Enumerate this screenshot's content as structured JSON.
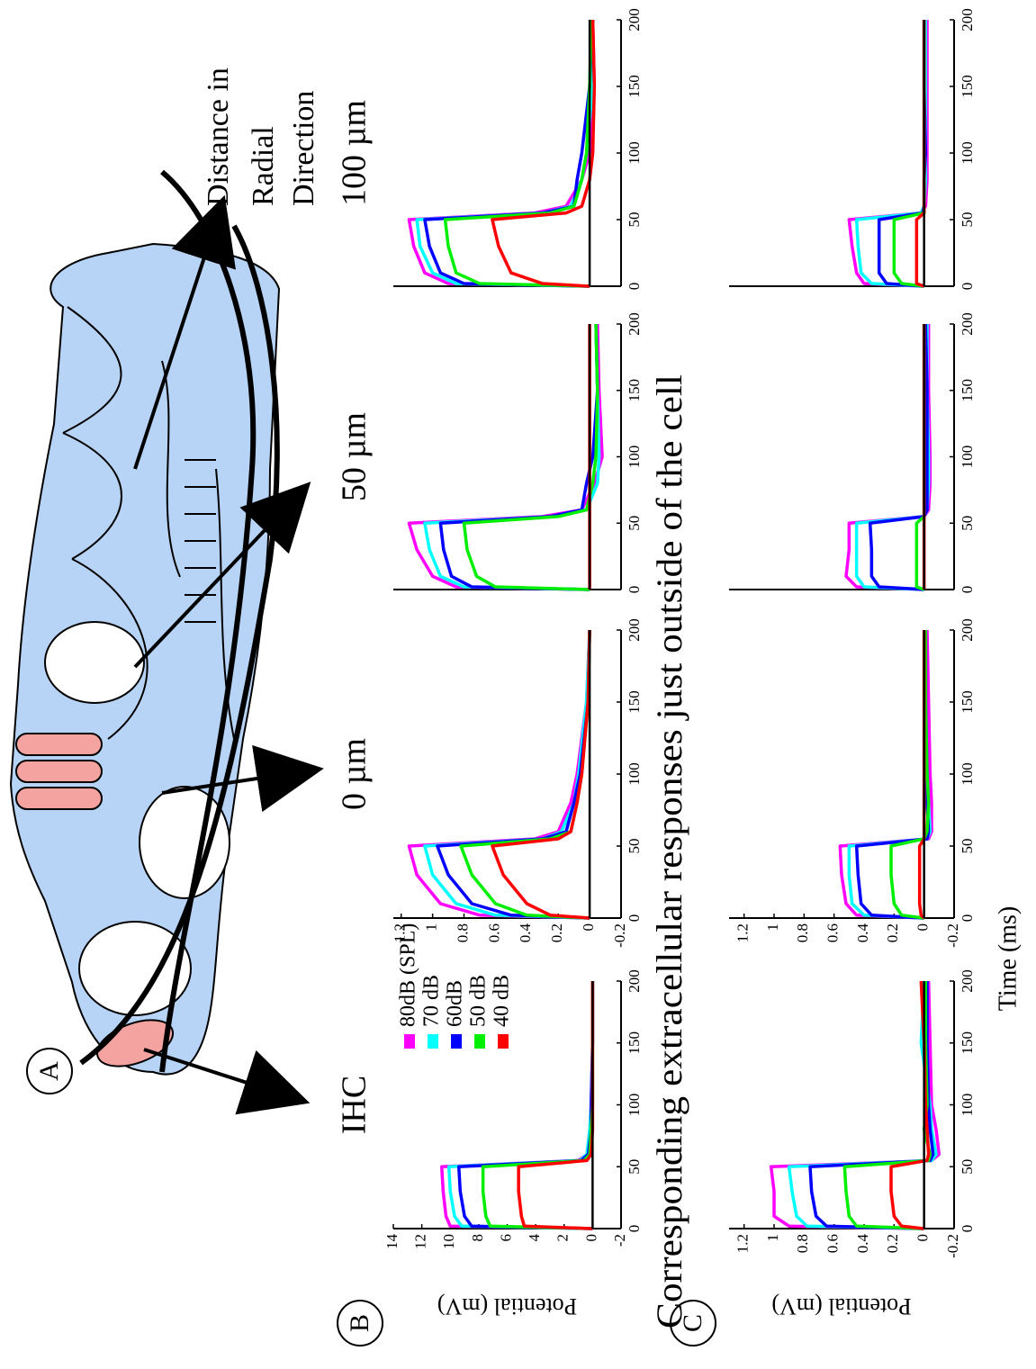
{
  "figure": {
    "panel_labels": [
      "A",
      "B",
      "C"
    ],
    "distance_label": [
      "Distance in",
      "Radial",
      "Direction"
    ],
    "row_c_title": "Corresponding extracellular responses just outside of the cell"
  },
  "chart_data": [
    {
      "type": "line",
      "title": "IHC",
      "ylabel": "Potential (mV)",
      "legend": "upper right",
      "x": [
        0,
        2,
        10,
        30,
        50,
        55,
        60,
        80,
        100,
        150,
        200
      ],
      "xlim": [
        0,
        200
      ],
      "xticks": [
        0,
        50,
        100,
        150,
        200
      ],
      "ylim": [
        -2,
        14
      ],
      "yticks": [
        -2,
        0,
        2,
        4,
        6,
        8,
        10,
        12,
        14
      ],
      "series": [
        {
          "name": "80dB (SPL)",
          "color": "#ff00ff",
          "values": [
            0,
            10.0,
            10.3,
            10.5,
            10.6,
            1.0,
            0.4,
            0.2,
            0.1,
            0,
            0
          ]
        },
        {
          "name": "70 dB",
          "color": "#00ffff",
          "values": [
            0,
            9.2,
            9.7,
            10.0,
            10.1,
            0.9,
            0.4,
            0.2,
            0.1,
            0,
            0
          ]
        },
        {
          "name": "60dB",
          "color": "#0000ff",
          "values": [
            0,
            8.5,
            9.0,
            9.3,
            9.4,
            0.8,
            0.3,
            0.1,
            0.1,
            0,
            0
          ]
        },
        {
          "name": "50 dB",
          "color": "#00ee00",
          "values": [
            0,
            7.2,
            7.5,
            7.7,
            7.7,
            0.6,
            0.2,
            0.1,
            0,
            0,
            0
          ]
        },
        {
          "name": "40 dB",
          "color": "#ff0000",
          "values": [
            0,
            4.8,
            5.0,
            5.2,
            5.2,
            0.4,
            0.1,
            0,
            0,
            0,
            0
          ]
        }
      ]
    },
    {
      "type": "line",
      "title": "0 µm",
      "x": [
        0,
        2,
        10,
        30,
        50,
        55,
        60,
        80,
        100,
        150,
        200
      ],
      "xlim": [
        0,
        200
      ],
      "xticks": [
        0,
        50,
        100,
        150,
        200
      ],
      "ylim": [
        -0.2,
        1.25
      ],
      "yticks": [
        -0.2,
        0,
        0.2,
        0.4,
        0.6,
        0.8,
        1,
        1.2
      ],
      "series": [
        {
          "color": "#ff00ff",
          "values": [
            0,
            0.7,
            0.95,
            1.1,
            1.15,
            0.35,
            0.2,
            0.12,
            0.08,
            0.02,
            0
          ]
        },
        {
          "color": "#00ffff",
          "values": [
            0,
            0.6,
            0.85,
            1.0,
            1.05,
            0.3,
            0.18,
            0.1,
            0.07,
            0.02,
            0
          ]
        },
        {
          "color": "#0000ff",
          "values": [
            0,
            0.5,
            0.75,
            0.9,
            0.97,
            0.3,
            0.15,
            0.1,
            0.06,
            0.01,
            0
          ]
        },
        {
          "color": "#00ee00",
          "values": [
            0,
            0.4,
            0.6,
            0.75,
            0.82,
            0.25,
            0.12,
            0.08,
            0.05,
            0.01,
            0
          ]
        },
        {
          "color": "#ff0000",
          "values": [
            0,
            0.25,
            0.4,
            0.55,
            0.62,
            0.2,
            0.12,
            0.08,
            0.05,
            0.01,
            0
          ]
        }
      ]
    },
    {
      "type": "line",
      "title": "50 µm",
      "x": [
        0,
        2,
        10,
        30,
        50,
        55,
        60,
        80,
        100,
        150,
        200
      ],
      "xlim": [
        0,
        200
      ],
      "xticks": [
        0,
        50,
        100,
        150,
        200
      ],
      "ylim": [
        -0.2,
        1.25
      ],
      "series": [
        {
          "color": "#ff00ff",
          "values": [
            0,
            0.85,
            1.0,
            1.1,
            1.15,
            0.3,
            0.05,
            -0.03,
            -0.08,
            -0.06,
            -0.05
          ]
        },
        {
          "color": "#00ffff",
          "values": [
            0,
            0.8,
            0.95,
            1.02,
            1.05,
            0.25,
            0.02,
            -0.05,
            -0.06,
            -0.05,
            -0.04
          ]
        },
        {
          "color": "#0000ff",
          "values": [
            0,
            0.75,
            0.88,
            0.93,
            0.95,
            0.25,
            0.05,
            0.02,
            -0.02,
            -0.05,
            -0.04
          ]
        },
        {
          "color": "#00ee00",
          "values": [
            0,
            0.6,
            0.72,
            0.78,
            0.8,
            0.2,
            0.02,
            -0.02,
            -0.04,
            -0.05,
            -0.04
          ]
        },
        {
          "color": "#ff0000",
          "values": [
            0,
            0,
            0,
            0,
            0,
            0,
            0,
            0,
            0,
            0,
            0
          ]
        }
      ]
    },
    {
      "type": "line",
      "title": "100 µm",
      "x": [
        0,
        2,
        10,
        30,
        50,
        55,
        60,
        80,
        100,
        150,
        200
      ],
      "xlim": [
        0,
        200
      ],
      "xticks": [
        0,
        50,
        100,
        150,
        200
      ],
      "ylim": [
        -0.2,
        1.25
      ],
      "series": [
        {
          "color": "#ff00ff",
          "values": [
            0,
            0.9,
            1.05,
            1.12,
            1.15,
            0.35,
            0.15,
            0.05,
            0,
            -0.03,
            -0.02
          ]
        },
        {
          "color": "#00ffff",
          "values": [
            0,
            0.85,
            1.0,
            1.08,
            1.1,
            0.3,
            0.12,
            0.05,
            0.02,
            -0.02,
            -0.02
          ]
        },
        {
          "color": "#0000ff",
          "values": [
            0,
            0.8,
            0.95,
            1.02,
            1.05,
            0.3,
            0.1,
            0.08,
            0.05,
            0,
            -0.02
          ]
        },
        {
          "color": "#00ee00",
          "values": [
            0,
            0.7,
            0.85,
            0.9,
            0.92,
            0.25,
            0.1,
            0.05,
            0.02,
            0,
            -0.01
          ]
        },
        {
          "color": "#ff0000",
          "values": [
            0,
            0.3,
            0.5,
            0.58,
            0.62,
            0.15,
            0.05,
            0,
            -0.02,
            -0.03,
            -0.02
          ]
        }
      ]
    },
    {
      "type": "line",
      "ylabel": "Potential (mV)",
      "xlabel": "Time (ms)",
      "x": [
        0,
        2,
        10,
        30,
        50,
        55,
        60,
        80,
        100,
        150,
        200
      ],
      "xlim": [
        0,
        200
      ],
      "xticks": [
        0,
        50,
        100,
        150,
        200
      ],
      "ylim": [
        -0.2,
        1.3
      ],
      "yticks": [
        -0.2,
        0,
        0.2,
        0.4,
        0.6,
        0.8,
        1,
        1.2
      ],
      "series": [
        {
          "color": "#ff00ff",
          "values": [
            0,
            0.9,
            1.0,
            1.0,
            1.02,
            -0.05,
            -0.1,
            -0.08,
            -0.05,
            -0.04,
            -0.03
          ]
        },
        {
          "color": "#00ffff",
          "values": [
            0,
            0.78,
            0.85,
            0.88,
            0.9,
            -0.05,
            -0.08,
            -0.05,
            -0.04,
            0.02,
            0
          ]
        },
        {
          "color": "#0000ff",
          "values": [
            0,
            0.65,
            0.72,
            0.75,
            0.76,
            -0.04,
            -0.06,
            -0.04,
            -0.03,
            -0.02,
            -0.02
          ]
        },
        {
          "color": "#00ee00",
          "values": [
            0,
            0.45,
            0.5,
            0.52,
            0.53,
            -0.03,
            -0.04,
            0,
            -0.02,
            -0.01,
            -0.01
          ]
        },
        {
          "color": "#ff0000",
          "values": [
            0,
            0.15,
            0.2,
            0.22,
            0.22,
            -0.02,
            -0.03,
            -0.02,
            -0.01,
            0,
            0.02
          ]
        }
      ]
    },
    {
      "type": "line",
      "x": [
        0,
        2,
        10,
        30,
        50,
        55,
        60,
        80,
        100,
        150,
        200
      ],
      "xlim": [
        0,
        200
      ],
      "xticks": [
        0,
        50,
        100,
        150,
        200
      ],
      "ylim": [
        -0.2,
        1.3
      ],
      "yticks": [
        -0.2,
        0,
        0.2,
        0.4,
        0.6,
        0.8,
        1,
        1.2
      ],
      "series": [
        {
          "color": "#ff00ff",
          "values": [
            0,
            0.45,
            0.52,
            0.55,
            0.56,
            -0.03,
            -0.05,
            -0.05,
            -0.04,
            -0.03,
            -0.02
          ]
        },
        {
          "color": "#00ffff",
          "values": [
            0,
            0.4,
            0.48,
            0.5,
            0.5,
            -0.02,
            -0.04,
            -0.03,
            -0.02,
            0,
            -0.01
          ]
        },
        {
          "color": "#0000ff",
          "values": [
            0,
            0.35,
            0.42,
            0.44,
            0.45,
            -0.02,
            -0.03,
            -0.02,
            -0.02,
            -0.01,
            -0.01
          ]
        },
        {
          "color": "#00ee00",
          "values": [
            0,
            0.15,
            0.2,
            0.22,
            0.22,
            0,
            -0.02,
            -0.03,
            -0.02,
            -0.01,
            -0.01
          ]
        },
        {
          "color": "#ff0000",
          "values": [
            0,
            0.02,
            0.03,
            0.03,
            0.03,
            0,
            0,
            0,
            0,
            0,
            0
          ]
        }
      ]
    },
    {
      "type": "line",
      "x": [
        0,
        2,
        10,
        30,
        50,
        55,
        60,
        80,
        100,
        150,
        200
      ],
      "xlim": [
        0,
        200
      ],
      "xticks": [
        0,
        50,
        100,
        150,
        200
      ],
      "ylim": [
        -0.2,
        1.3
      ],
      "series": [
        {
          "color": "#ff00ff",
          "values": [
            0,
            0.45,
            0.52,
            0.5,
            0.5,
            0,
            -0.03,
            -0.04,
            -0.04,
            -0.03,
            -0.03
          ]
        },
        {
          "color": "#00ffff",
          "values": [
            0,
            0.4,
            0.45,
            0.45,
            0.45,
            0,
            -0.02,
            -0.03,
            -0.03,
            -0.02,
            -0.02
          ]
        },
        {
          "color": "#0000ff",
          "values": [
            0,
            0.3,
            0.35,
            0.35,
            0.36,
            0,
            -0.02,
            -0.02,
            -0.02,
            -0.02,
            -0.01
          ]
        },
        {
          "color": "#00ee00",
          "values": [
            0,
            0.05,
            0.05,
            0.05,
            0.05,
            0,
            0,
            0,
            0,
            0,
            0
          ]
        },
        {
          "color": "#ff0000",
          "values": [
            0,
            0,
            0,
            0,
            0,
            0,
            0,
            0,
            0,
            0,
            0
          ]
        }
      ]
    },
    {
      "type": "line",
      "x": [
        0,
        2,
        10,
        30,
        50,
        55,
        60,
        80,
        100,
        150,
        200
      ],
      "xlim": [
        0,
        200
      ],
      "xticks": [
        0,
        50,
        100,
        150,
        200
      ],
      "ylim": [
        -0.2,
        1.3
      ],
      "series": [
        {
          "color": "#ff00ff",
          "values": [
            0,
            0.4,
            0.45,
            0.48,
            0.5,
            0.02,
            -0.01,
            -0.02,
            -0.02,
            -0.02,
            -0.02
          ]
        },
        {
          "color": "#00ffff",
          "values": [
            0,
            0.35,
            0.42,
            0.44,
            0.45,
            0.02,
            0,
            -0.01,
            -0.01,
            -0.01,
            -0.01
          ]
        },
        {
          "color": "#0000ff",
          "values": [
            0,
            0.25,
            0.3,
            0.3,
            0.3,
            0.01,
            0,
            0,
            -0.01,
            0,
            0
          ]
        },
        {
          "color": "#00ee00",
          "values": [
            0,
            0.15,
            0.2,
            0.2,
            0.2,
            0,
            0,
            0,
            0,
            0,
            0
          ]
        },
        {
          "color": "#ff0000",
          "values": [
            0,
            0.05,
            0.05,
            0.05,
            0.05,
            0,
            0,
            0,
            0,
            0,
            0
          ]
        }
      ]
    }
  ]
}
